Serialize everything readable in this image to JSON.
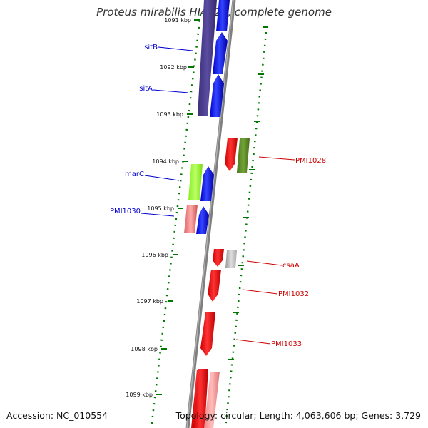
{
  "map": {
    "title": "Proteus mirabilis HI4320, complete genome",
    "accession": "Accession: NC_010554",
    "topology": "Topology: circular; Length: 4,063,606 bp; Genes: 3,729"
  },
  "ticks": [
    {
      "label": "1091 kbp"
    },
    {
      "label": "1092 kbp"
    },
    {
      "label": "1093 kbp"
    },
    {
      "label": "1094 kbp"
    },
    {
      "label": "1095 kbp"
    },
    {
      "label": "1096 kbp"
    },
    {
      "label": "1097 kbp"
    },
    {
      "label": "1098 kbp"
    },
    {
      "label": "1099 kbp"
    }
  ],
  "genes_forward": [
    {
      "label": "sitB",
      "color": "#0000cc"
    },
    {
      "label": "sitA",
      "color": "#0000cc"
    },
    {
      "label": "marC",
      "color": "#0000cc"
    },
    {
      "label": "PMI1030",
      "color": "#0000cc"
    }
  ],
  "genes_reverse": [
    {
      "label": "PMI1028",
      "color": "#cc0000"
    },
    {
      "label": "csaA",
      "color": "#cc0000"
    },
    {
      "label": "PMI1032",
      "color": "#cc0000"
    },
    {
      "label": "PMI1033",
      "color": "#cc0000"
    }
  ],
  "colors": {
    "backbone": "#8a8a8a",
    "forward_cds": "#0000ff",
    "reverse_cds": "#ee0000",
    "dots": "#007700",
    "cog_purple": "#4b3d8f",
    "cog_lime": "#99ff33",
    "cog_olive": "#5b8a1f",
    "cog_pink": "#ee7777",
    "cog_gray": "#bbbbbb"
  }
}
